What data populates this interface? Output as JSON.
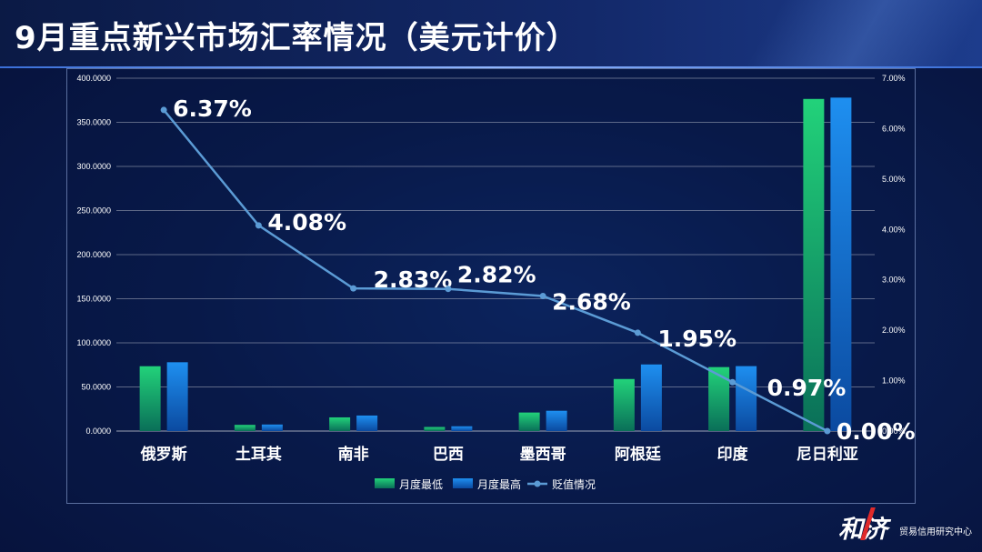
{
  "page": {
    "title": "9月重点新兴市场汇率情况（美元计价）"
  },
  "logo": {
    "mark": "和济",
    "subtitle": "贸易信用研究中心"
  },
  "colors": {
    "low_top": "#22d27a",
    "low_bottom": "#0a7a5a",
    "high_top": "#1e8ff0",
    "high_bottom": "#0b4fa6",
    "line": "#5b9bd5",
    "grid": "rgba(255,255,255,0.35)",
    "text": "#ffffff"
  },
  "chart_data": {
    "type": "bar",
    "categories": [
      "俄罗斯",
      "土耳其",
      "南非",
      "巴西",
      "墨西哥",
      "阿根廷",
      "印度",
      "尼日利亚"
    ],
    "series": [
      {
        "name": "月度最低",
        "type": "bar",
        "axis": "left",
        "values": [
          73.5,
          7.0,
          15.5,
          4.6,
          21.0,
          59.0,
          72.5,
          376.5
        ]
      },
      {
        "name": "月度最高",
        "type": "bar",
        "axis": "left",
        "values": [
          78.0,
          7.4,
          17.6,
          5.4,
          23.0,
          75.5,
          73.6,
          378.0
        ]
      },
      {
        "name": "贬值情况",
        "type": "line",
        "axis": "right",
        "values": [
          6.37,
          4.08,
          2.83,
          2.82,
          2.68,
          1.95,
          0.97,
          0.0
        ],
        "labels": [
          "6.37%",
          "4.08%",
          "2.83%",
          "2.82%",
          "2.68%",
          "1.95%",
          "0.97%",
          "0.00%"
        ]
      }
    ],
    "y_left": {
      "min": 0,
      "max": 400,
      "step": 50,
      "ticks": [
        "0.0000",
        "50.0000",
        "100.0000",
        "150.0000",
        "200.0000",
        "250.0000",
        "300.0000",
        "350.0000",
        "400.0000"
      ]
    },
    "y_right": {
      "min": 0,
      "max": 7,
      "step": 1,
      "ticks": [
        "0.00%",
        "1.00%",
        "2.00%",
        "3.00%",
        "4.00%",
        "5.00%",
        "6.00%",
        "7.00%"
      ]
    },
    "grid": true,
    "legend_position": "bottom"
  }
}
